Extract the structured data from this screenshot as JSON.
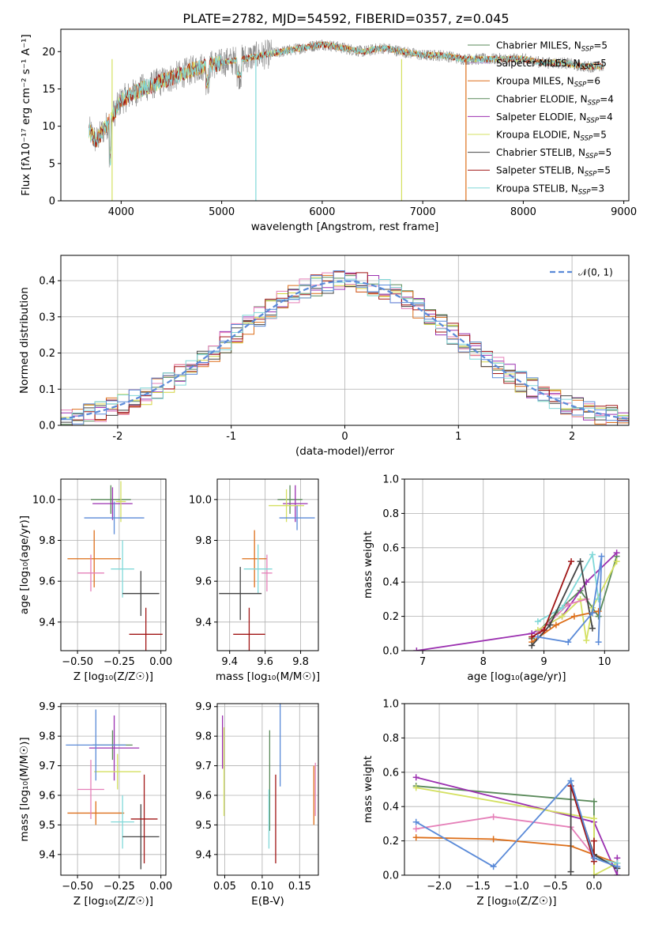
{
  "title": "PLATE=2782, MJD=54592, FIBERID=0357, z=0.045",
  "colors": [
    "#5a8a5a",
    "#9b30b0",
    "#d4d440",
    "#dd6f1a",
    "#e57fb8",
    "#444444",
    "#a01515",
    "#80d8d8",
    "#5a8ad8"
  ],
  "chart_data": [
    {
      "type": "line",
      "panel": "spectrum",
      "xlabel": "wavelength [Angstrom, rest frame]",
      "ylabel": "Flux [fλ10⁻¹⁷ erg cm⁻² s⁻¹ A⁻¹]",
      "xlim": [
        3400,
        9050
      ],
      "ylim": [
        0,
        23
      ],
      "xticks": [
        4000,
        5000,
        6000,
        7000,
        8000,
        9000
      ],
      "yticks": [
        0,
        5,
        10,
        15,
        20
      ],
      "grid": false,
      "legend_position": "right",
      "anchors_x": [
        3680,
        3750,
        3900,
        4000,
        4200,
        4400,
        4600,
        4800,
        5000,
        5200,
        5400,
        5600,
        5800,
        6000,
        6200,
        6400,
        6600,
        6800,
        7000,
        7200,
        7400,
        7600,
        7800,
        8000,
        8200,
        8400,
        8600,
        8800
      ],
      "anchors_y": [
        9.5,
        8.0,
        11.0,
        13.5,
        15.0,
        16.0,
        17.0,
        18.0,
        18.5,
        19.0,
        19.5,
        20.0,
        20.5,
        21.0,
        20.5,
        20.0,
        20.5,
        20.0,
        19.5,
        19.5,
        19.0,
        19.0,
        19.0,
        19.0,
        18.5,
        18.5,
        18.0,
        18.0
      ],
      "legend": [
        {
          "label": "Chabrier MILES, N",
          "sub": "SSP",
          "suffix": "=5",
          "color": "#5a8a5a"
        },
        {
          "label": "Salpeter MILES, N",
          "sub": "SSP",
          "suffix": "=5",
          "color": "#b8a0d8"
        },
        {
          "label": "Kroupa MILES, N",
          "sub": "SSP",
          "suffix": "=6",
          "color": "#dd6f1a"
        },
        {
          "label": "Chabrier ELODIE, N",
          "sub": "SSP",
          "suffix": "=4",
          "color": "#5a8a5a"
        },
        {
          "label": "Salpeter ELODIE, N",
          "sub": "SSP",
          "suffix": "=4",
          "color": "#9b30b0"
        },
        {
          "label": "Kroupa ELODIE, N",
          "sub": "SSP",
          "suffix": "=5",
          "color": "#d4e060"
        },
        {
          "label": "Chabrier STELIB, N",
          "sub": "SSP",
          "suffix": "=5",
          "color": "#444444"
        },
        {
          "label": "Salpeter STELIB, N",
          "sub": "SSP",
          "suffix": "=5",
          "color": "#a01515"
        },
        {
          "label": "Kroupa STELIB, N",
          "sub": "SSP",
          "suffix": "=3",
          "color": "#80d8d8"
        }
      ]
    },
    {
      "type": "histogram",
      "panel": "residuals",
      "xlabel": "(data-model)/error",
      "ylabel": "Normed distribution",
      "xlim": [
        -2.5,
        2.5
      ],
      "ylim": [
        0,
        0.47
      ],
      "xticks": [
        -2,
        -1,
        0,
        1,
        2
      ],
      "yticks": [
        0.0,
        0.1,
        0.2,
        0.3,
        0.4
      ],
      "grid": true,
      "legend_position": "top-right",
      "legend": [
        {
          "label": "𝒩(0, 1)",
          "color": "#5a8ad8",
          "style": "dashed"
        }
      ],
      "bin_width": 0.1
    },
    {
      "type": "errorbar",
      "panel": "age-vs-Z",
      "xlabel": "Z [log₁₀(Z/Z☉)]",
      "ylabel": "age  [log₁₀(age/yr)]",
      "xlim": [
        -0.6,
        0.03
      ],
      "ylim": [
        9.26,
        10.1
      ],
      "xticks": [
        -0.5,
        -0.25,
        0.0
      ],
      "xticklabels": [
        "−0.50",
        "−0.25",
        "0.00"
      ],
      "yticks": [
        9.4,
        9.6,
        9.8,
        10.0
      ],
      "grid": true,
      "points": [
        {
          "x": -0.3,
          "xerr": 0.12,
          "y": 10.0,
          "yerr": 0.07,
          "color": "#5a8a5a"
        },
        {
          "x": -0.29,
          "xerr": 0.12,
          "y": 9.98,
          "yerr": 0.08,
          "color": "#9b30b0"
        },
        {
          "x": -0.24,
          "xerr": 0.03,
          "y": 9.99,
          "yerr": 0.1,
          "color": "#d4e060"
        },
        {
          "x": -0.28,
          "xerr": 0.18,
          "y": 9.91,
          "yerr": 0.08,
          "color": "#5a8ad8"
        },
        {
          "x": -0.4,
          "xerr": 0.16,
          "y": 9.71,
          "yerr": 0.14,
          "color": "#dd6f1a"
        },
        {
          "x": -0.42,
          "xerr": 0.08,
          "y": 9.64,
          "yerr": 0.09,
          "color": "#e57fb8"
        },
        {
          "x": -0.23,
          "xerr": 0.07,
          "y": 9.66,
          "yerr": 0.14,
          "color": "#80d8d8"
        },
        {
          "x": -0.12,
          "xerr": 0.11,
          "y": 9.54,
          "yerr": 0.11,
          "color": "#444444"
        },
        {
          "x": -0.09,
          "xerr": 0.1,
          "y": 9.34,
          "yerr": 0.13,
          "color": "#a01515"
        }
      ]
    },
    {
      "type": "errorbar",
      "panel": "age-vs-mass",
      "xlabel": "mass [log₁₀(M/M☉)]",
      "ylabel": "",
      "xlim": [
        9.33,
        9.9
      ],
      "ylim": [
        9.26,
        10.1
      ],
      "xticks": [
        9.4,
        9.6,
        9.8
      ],
      "yticks": [
        9.4,
        9.6,
        9.8,
        10.0
      ],
      "grid": true,
      "points": [
        {
          "x": 9.74,
          "xerr": 0.07,
          "y": 10.0,
          "yerr": 0.07,
          "color": "#5a8a5a"
        },
        {
          "x": 9.77,
          "xerr": 0.07,
          "y": 9.98,
          "yerr": 0.09,
          "color": "#9b30b0"
        },
        {
          "x": 9.72,
          "xerr": 0.1,
          "y": 9.97,
          "yerr": 0.08,
          "color": "#d4e060"
        },
        {
          "x": 9.78,
          "xerr": 0.1,
          "y": 9.91,
          "yerr": 0.06,
          "color": "#5a8ad8"
        },
        {
          "x": 9.54,
          "xerr": 0.07,
          "y": 9.71,
          "yerr": 0.14,
          "color": "#dd6f1a"
        },
        {
          "x": 9.61,
          "xerr": 0.03,
          "y": 9.64,
          "yerr": 0.09,
          "color": "#e57fb8"
        },
        {
          "x": 9.56,
          "xerr": 0.08,
          "y": 9.66,
          "yerr": 0.12,
          "color": "#80d8d8"
        },
        {
          "x": 9.46,
          "xerr": 0.12,
          "y": 9.54,
          "yerr": 0.13,
          "color": "#444444"
        },
        {
          "x": 9.51,
          "xerr": 0.09,
          "y": 9.34,
          "yerr": 0.13,
          "color": "#a01515"
        }
      ]
    },
    {
      "type": "line",
      "panel": "mass-weight-vs-age",
      "xlabel": "age  [log₁₀(age/yr)]",
      "ylabel": "mass weight",
      "xlim": [
        6.7,
        10.4
      ],
      "ylim": [
        0,
        1.0
      ],
      "xticks": [
        7,
        8,
        9,
        10
      ],
      "yticks": [
        0.0,
        0.2,
        0.4,
        0.6,
        0.8,
        1.0
      ],
      "grid": true,
      "series": [
        {
          "color": "#5a8a5a",
          "x": [
            8.8,
            9.2,
            9.6,
            9.9,
            10.2
          ],
          "y": [
            0.07,
            0.22,
            0.35,
            0.2,
            0.55
          ]
        },
        {
          "color": "#9b30b0",
          "x": [
            6.9,
            8.8,
            9.3,
            9.7,
            10.2
          ],
          "y": [
            0.0,
            0.1,
            0.2,
            0.4,
            0.57
          ]
        },
        {
          "color": "#d4e060",
          "x": [
            8.9,
            9.3,
            9.6,
            9.7,
            9.8,
            10.2
          ],
          "y": [
            0.12,
            0.2,
            0.3,
            0.06,
            0.25,
            0.52
          ]
        },
        {
          "color": "#dd6f1a",
          "x": [
            8.8,
            9.2,
            9.5,
            9.9
          ],
          "y": [
            0.05,
            0.15,
            0.2,
            0.23
          ]
        },
        {
          "color": "#e57fb8",
          "x": [
            8.9,
            9.4,
            9.7
          ],
          "y": [
            0.1,
            0.27,
            0.3
          ]
        },
        {
          "color": "#80d8d8",
          "x": [
            8.9,
            9.3,
            9.8,
            9.9
          ],
          "y": [
            0.17,
            0.25,
            0.56,
            0.3
          ]
        },
        {
          "color": "#444444",
          "x": [
            8.8,
            9.1,
            9.6,
            9.8
          ],
          "y": [
            0.03,
            0.15,
            0.52,
            0.13
          ]
        },
        {
          "color": "#a01515",
          "x": [
            8.8,
            9.0,
            9.45
          ],
          "y": [
            0.08,
            0.12,
            0.52
          ]
        },
        {
          "color": "#5a8ad8",
          "x": [
            8.9,
            9.4,
            9.8,
            9.95,
            9.9
          ],
          "y": [
            0.08,
            0.05,
            0.22,
            0.55,
            0.05
          ]
        }
      ]
    },
    {
      "type": "errorbar",
      "panel": "mass-vs-Z",
      "xlabel": "Z [log₁₀(Z/Z☉)]",
      "ylabel": "mass [log₁₀(M/M☉)]",
      "xlim": [
        -0.6,
        0.03
      ],
      "ylim": [
        9.33,
        9.91
      ],
      "xticks": [
        -0.5,
        -0.25,
        0.0
      ],
      "xticklabels": [
        "−0.50",
        "−0.25",
        "0.00"
      ],
      "yticks": [
        9.4,
        9.5,
        9.6,
        9.7,
        9.8,
        9.9
      ],
      "grid": true,
      "points": [
        {
          "x": -0.29,
          "xerr": 0.12,
          "y": 9.77,
          "yerr": 0.05,
          "color": "#5a8a5a"
        },
        {
          "x": -0.28,
          "xerr": 0.15,
          "y": 9.76,
          "yerr": 0.11,
          "color": "#9b30b0"
        },
        {
          "x": -0.26,
          "xerr": 0.14,
          "y": 9.68,
          "yerr": 0.06,
          "color": "#d4e060"
        },
        {
          "x": -0.39,
          "xerr": 0.18,
          "y": 9.77,
          "yerr": 0.12,
          "color": "#5a8ad8"
        },
        {
          "x": -0.39,
          "xerr": 0.17,
          "y": 9.54,
          "yerr": 0.04,
          "color": "#dd6f1a"
        },
        {
          "x": -0.42,
          "xerr": 0.08,
          "y": 9.62,
          "yerr": 0.1,
          "color": "#e57fb8"
        },
        {
          "x": -0.23,
          "xerr": 0.07,
          "y": 9.51,
          "yerr": 0.09,
          "color": "#80d8d8"
        },
        {
          "x": -0.12,
          "xerr": 0.11,
          "y": 9.46,
          "yerr": 0.11,
          "color": "#444444"
        },
        {
          "x": -0.1,
          "xerr": 0.08,
          "y": 9.52,
          "yerr": 0.15,
          "color": "#a01515"
        }
      ]
    },
    {
      "type": "errorbar",
      "panel": "mass-vs-ebv",
      "xlabel": "E(B-V)",
      "ylabel": "",
      "xlim": [
        0.04,
        0.175
      ],
      "ylim": [
        9.33,
        9.91
      ],
      "xticks": [
        0.05,
        0.1,
        0.15
      ],
      "xticklabels": [
        "0.05",
        "0.10",
        "0.15"
      ],
      "yticks": [
        9.4,
        9.5,
        9.6,
        9.7,
        9.8,
        9.9
      ],
      "grid": true,
      "points": [
        {
          "x": 0.047,
          "xerr": 0,
          "y": 9.78,
          "yerr": 0.09,
          "color": "#9b30b0"
        },
        {
          "x": 0.049,
          "xerr": 0,
          "y": 9.68,
          "yerr": 0.15,
          "color": "#d4e060"
        },
        {
          "x": 0.11,
          "xerr": 0,
          "y": 9.65,
          "yerr": 0.17,
          "color": "#5a8a5a"
        },
        {
          "x": 0.109,
          "xerr": 0,
          "y": 9.52,
          "yerr": 0.1,
          "color": "#80d8d8"
        },
        {
          "x": 0.118,
          "xerr": 0,
          "y": 9.52,
          "yerr": 0.15,
          "color": "#a01515"
        },
        {
          "x": 0.124,
          "xerr": 0,
          "y": 9.77,
          "yerr": 0.14,
          "color": "#5a8ad8"
        },
        {
          "x": 0.169,
          "xerr": 0,
          "y": 9.6,
          "yerr": 0.1,
          "color": "#dd6f1a"
        },
        {
          "x": 0.171,
          "xerr": 0,
          "y": 9.62,
          "yerr": 0.09,
          "color": "#e57fb8"
        }
      ]
    },
    {
      "type": "line",
      "panel": "mass-weight-vs-Z",
      "xlabel": "Z [log₁₀(Z/Z☉)]",
      "ylabel": "mass weight",
      "xlim": [
        -2.45,
        0.45
      ],
      "ylim": [
        0,
        1.0
      ],
      "xticks": [
        -2.0,
        -1.5,
        -1.0,
        -0.5,
        0.0
      ],
      "xticklabels": [
        "−2.0",
        "−1.5",
        "−1.0",
        "−0.5",
        "0.0"
      ],
      "yticks": [
        0.0,
        0.2,
        0.4,
        0.6,
        0.8,
        1.0
      ],
      "grid": true,
      "series": [
        {
          "color": "#5a8a5a",
          "x": [
            -2.3,
            0.0,
            0.0,
            0.3
          ],
          "y": [
            0.52,
            0.43,
            0.12,
            0.04
          ]
        },
        {
          "color": "#9b30b0",
          "x": [
            -2.3,
            0.0,
            0.3,
            0.3
          ],
          "y": [
            0.57,
            0.31,
            0.0,
            0.1
          ]
        },
        {
          "color": "#d4e060",
          "x": [
            -2.3,
            0.0,
            0.0,
            0.3
          ],
          "y": [
            0.51,
            0.33,
            0.0,
            0.07
          ]
        },
        {
          "color": "#dd6f1a",
          "x": [
            -2.3,
            -1.3,
            -0.3,
            0.0,
            0.3
          ],
          "y": [
            0.22,
            0.21,
            0.17,
            0.12,
            0.07
          ]
        },
        {
          "color": "#e57fb8",
          "x": [
            -2.3,
            -1.3,
            -0.3,
            0.0
          ],
          "y": [
            0.27,
            0.34,
            0.28,
            0.11
          ]
        },
        {
          "color": "#80d8d8",
          "x": [
            -0.3,
            0.0,
            0.3
          ],
          "y": [
            0.55,
            0.1,
            0.07
          ]
        },
        {
          "color": "#444444",
          "x": [
            -0.3,
            -0.3,
            0.0,
            0.3
          ],
          "y": [
            0.02,
            0.52,
            0.12,
            0.04
          ]
        },
        {
          "color": "#a01515",
          "x": [
            -0.3,
            0.0,
            0.0
          ],
          "y": [
            0.52,
            0.08,
            0.2
          ]
        },
        {
          "color": "#5a8ad8",
          "x": [
            -2.3,
            -1.3,
            -0.3,
            0.0,
            0.3
          ],
          "y": [
            0.31,
            0.05,
            0.55,
            0.1,
            0.05
          ]
        }
      ]
    }
  ]
}
